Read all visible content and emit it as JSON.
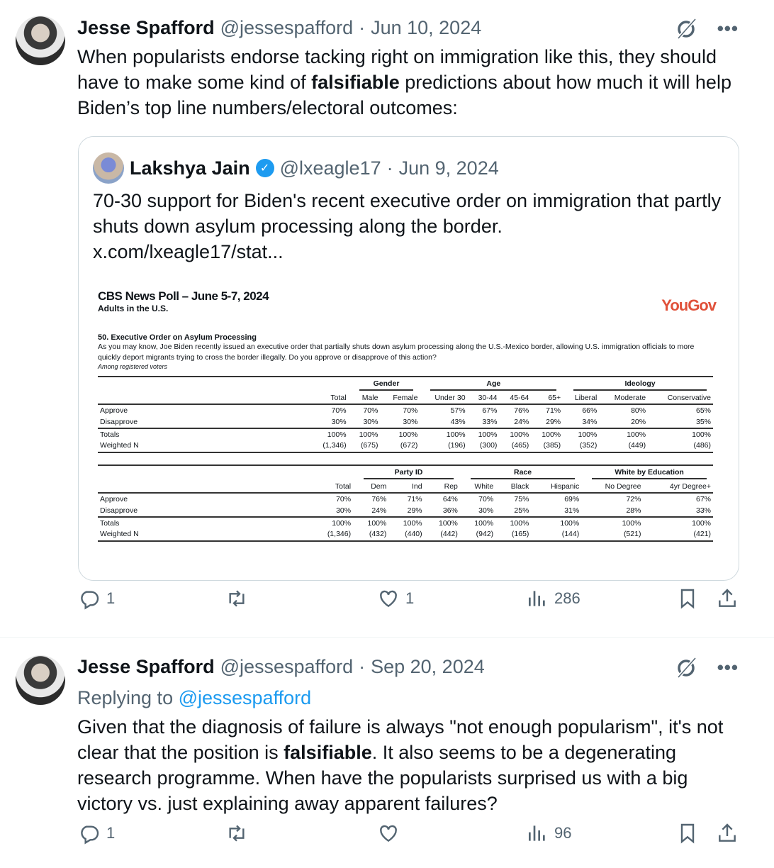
{
  "tweet1": {
    "name": "Jesse Spafford",
    "handle": "@jessespafford",
    "sep": "·",
    "date": "Jun 10, 2024",
    "text_1": "When popularists endorse tacking right on immigration like this, they should have to make some kind of ",
    "text_bold": "falsifiable",
    "text_2": " predictions about how much it will help Biden’s top line numbers/electoral outcomes:",
    "replies": "1",
    "reposts": "",
    "likes": "1",
    "views": "286"
  },
  "quote": {
    "name": "Lakshya Jain",
    "handle": "@lxeagle17",
    "sep": "·",
    "date": "Jun 9, 2024",
    "text": "70-30 support for Biden's recent executive order on immigration that partly shuts down asylum processing along the border.",
    "link": "x.com/lxeagle17/stat..."
  },
  "poll": {
    "title": "CBS News Poll – June 5-7, 2024",
    "subtitle": "Adults in the U.S.",
    "brand": "YouGov",
    "brand_color": "#e0513a",
    "question_title": "50. Executive Order on Asylum Processing",
    "question": "As you may know, Joe Biden recently issued an executive order that partially shuts down asylum processing along the U.S.-Mexico border, allowing U.S. immigration officials to more quickly deport migrants trying to cross the border illegally. Do you approve or disapprove of this action?",
    "note": "Among registered voters",
    "tables": [
      {
        "groups": [
          {
            "label": "",
            "span": 1
          },
          {
            "label": "Gender",
            "span": 2
          },
          {
            "label": "Age",
            "span": 4
          },
          {
            "label": "Ideology",
            "span": 3
          }
        ],
        "columns": [
          "Total",
          "Male",
          "Female",
          "Under 30",
          "30-44",
          "45-64",
          "65+",
          "Liberal",
          "Moderate",
          "Conservative"
        ],
        "rows": [
          [
            "Approve",
            "70%",
            "70%",
            "70%",
            "57%",
            "67%",
            "76%",
            "71%",
            "66%",
            "80%",
            "65%"
          ],
          [
            "Disapprove",
            "30%",
            "30%",
            "30%",
            "43%",
            "33%",
            "24%",
            "29%",
            "34%",
            "20%",
            "35%"
          ],
          [
            "Totals",
            "100%",
            "100%",
            "100%",
            "100%",
            "100%",
            "100%",
            "100%",
            "100%",
            "100%",
            "100%"
          ],
          [
            "Weighted N",
            "(1,346)",
            "(675)",
            "(672)",
            "(196)",
            "(300)",
            "(465)",
            "(385)",
            "(352)",
            "(449)",
            "(486)"
          ]
        ]
      },
      {
        "groups": [
          {
            "label": "",
            "span": 1
          },
          {
            "label": "Party ID",
            "span": 3
          },
          {
            "label": "Race",
            "span": 3
          },
          {
            "label": "White by Education",
            "span": 2
          }
        ],
        "columns": [
          "Total",
          "Dem",
          "Ind",
          "Rep",
          "White",
          "Black",
          "Hispanic",
          "No Degree",
          "4yr Degree+"
        ],
        "rows": [
          [
            "Approve",
            "70%",
            "76%",
            "71%",
            "64%",
            "70%",
            "75%",
            "69%",
            "72%",
            "67%"
          ],
          [
            "Disapprove",
            "30%",
            "24%",
            "29%",
            "36%",
            "30%",
            "25%",
            "31%",
            "28%",
            "33%"
          ],
          [
            "Totals",
            "100%",
            "100%",
            "100%",
            "100%",
            "100%",
            "100%",
            "100%",
            "100%",
            "100%"
          ],
          [
            "Weighted N",
            "(1,346)",
            "(432)",
            "(440)",
            "(442)",
            "(942)",
            "(165)",
            "(144)",
            "(521)",
            "(421)"
          ]
        ]
      }
    ]
  },
  "tweet2": {
    "name": "Jesse Spafford",
    "handle": "@jessespafford",
    "sep": "·",
    "date": "Sep 20, 2024",
    "replying_label": "Replying to ",
    "replying_handle": "@jessespafford",
    "text_1": "Given that the diagnosis of failure is always \"not enough popularism\", it's not clear that the position is ",
    "text_bold": "falsifiable",
    "text_2": ". It also seems to be a degenerating research programme. When have the popularists surprised us with a big victory vs. just explaining away apparent failures?",
    "replies": "1",
    "reposts": "",
    "likes": "",
    "views": "96"
  },
  "colors": {
    "accent": "#1d9bf0",
    "muted": "#536471"
  }
}
